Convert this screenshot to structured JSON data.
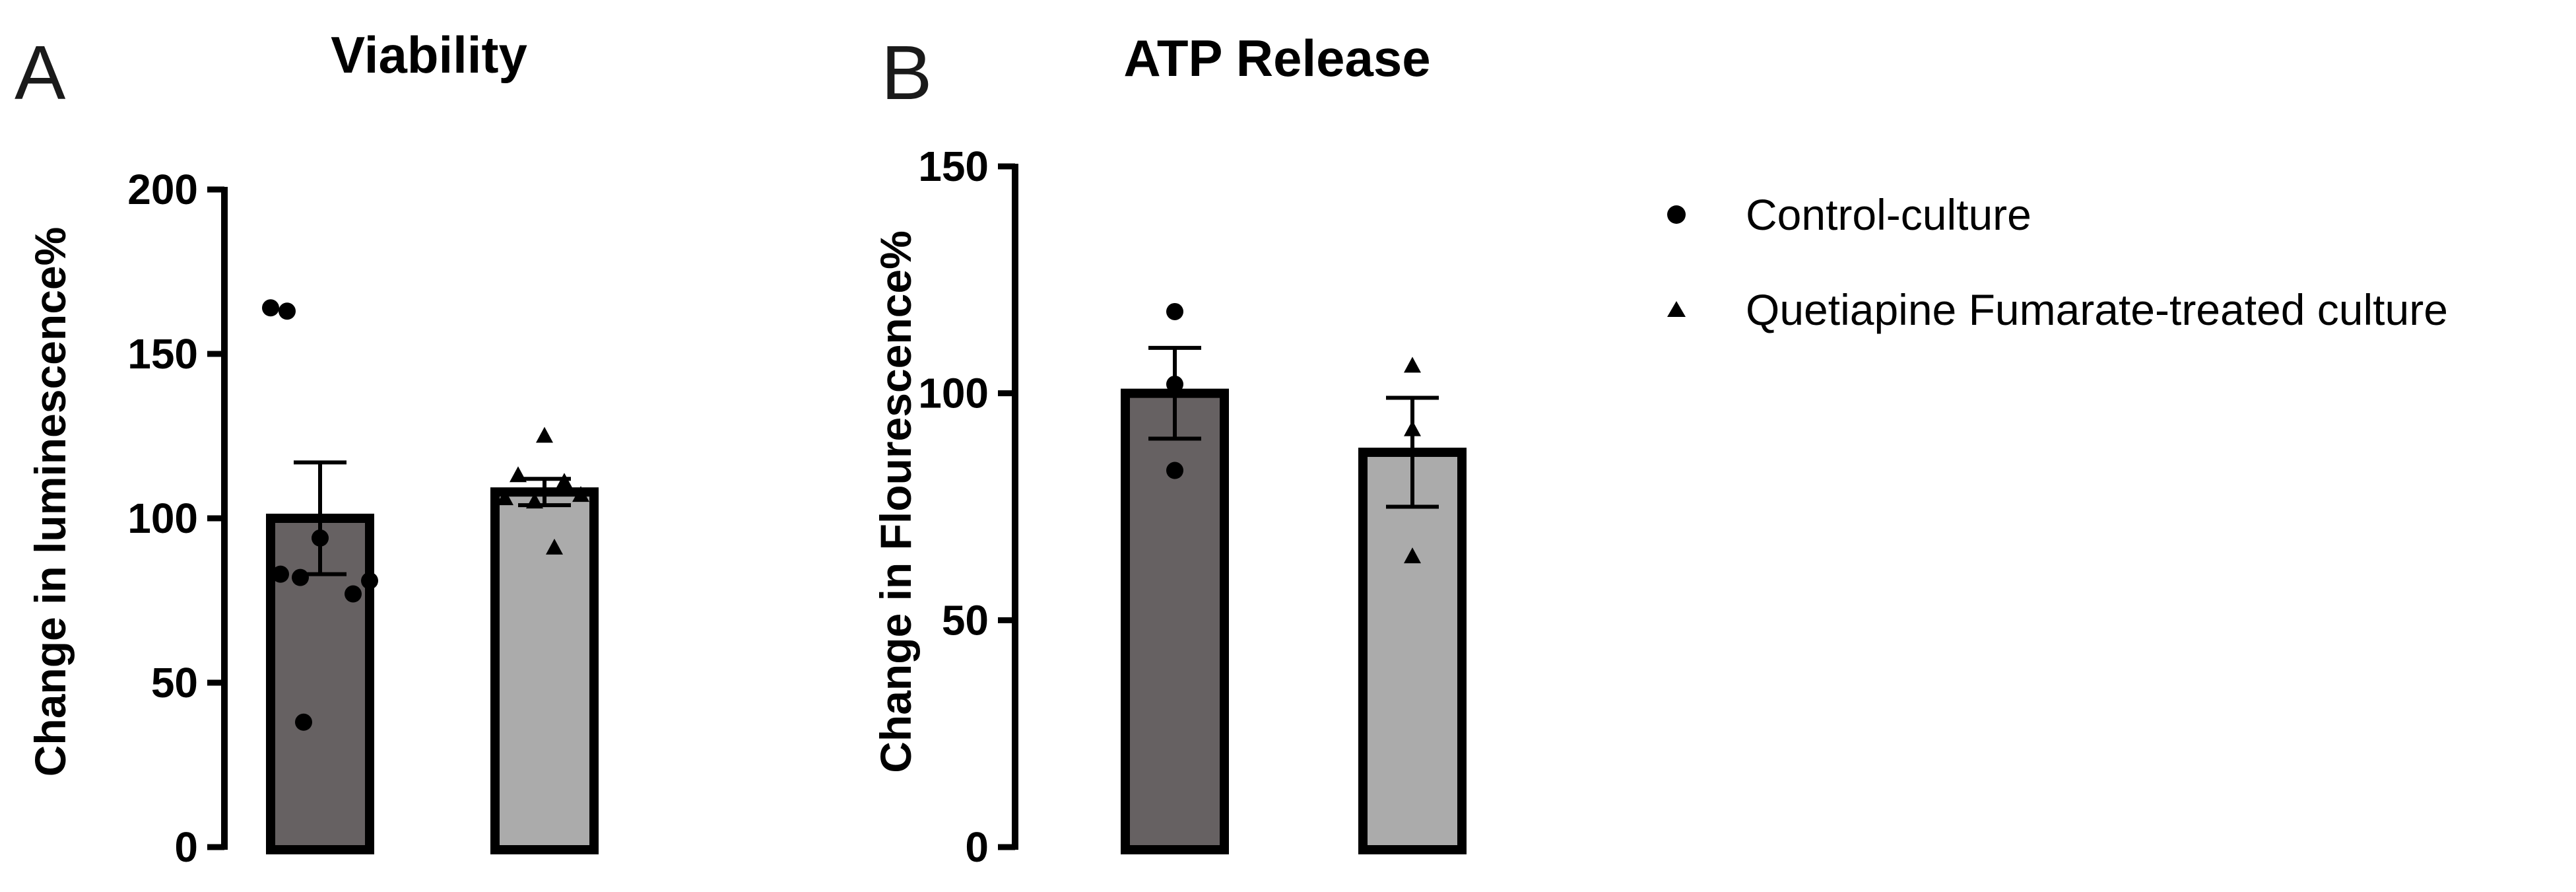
{
  "legend": {
    "entries": [
      {
        "label": "Control-culture",
        "marker": "circle"
      },
      {
        "label": "Quetiapine Fumarate-treated culture",
        "marker": "triangle"
      }
    ]
  },
  "colors": {
    "control_bar": "#666162",
    "treated_bar": "#ababab",
    "outline": "#000000"
  },
  "chart_data": [
    {
      "type": "bar",
      "panel_label": "A",
      "title": "Viability",
      "xlabel": "",
      "ylabel": "Change in luminescence%",
      "ylim": [
        0,
        200
      ],
      "yticks": [
        0,
        50,
        100,
        150,
        200
      ],
      "series": [
        {
          "name": "Control-culture",
          "value": 100,
          "sem": 17,
          "points": [
            164,
            163,
            94,
            83,
            82,
            77,
            81,
            38
          ]
        },
        {
          "name": "Quetiapine Fumarate-treated culture",
          "value": 108,
          "sem": 4,
          "points": [
            125,
            113,
            111,
            107,
            106,
            105,
            91
          ]
        }
      ]
    },
    {
      "type": "bar",
      "panel_label": "B",
      "title": "ATP Release",
      "xlabel": "",
      "ylabel": "Change in Flourescence%",
      "ylim": [
        0,
        150
      ],
      "yticks": [
        0,
        50,
        100,
        150
      ],
      "series": [
        {
          "name": "Control-culture",
          "value": 100,
          "sem": 10,
          "points": [
            118,
            102,
            83
          ]
        },
        {
          "name": "Quetiapine Fumarate-treated culture",
          "value": 87,
          "sem": 12,
          "points": [
            106,
            92,
            64
          ]
        }
      ]
    }
  ]
}
